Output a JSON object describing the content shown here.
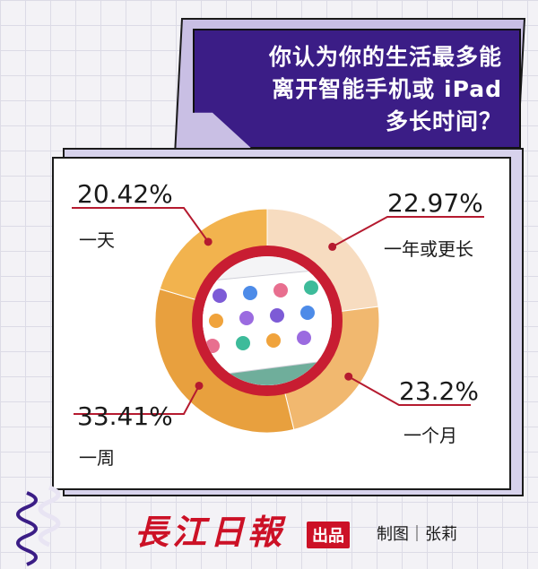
{
  "question": {
    "line1": "你认为你的生活最多能",
    "line2": "离开智能手机或 iPad",
    "line3": "多长时间？"
  },
  "chart_data": {
    "type": "pie",
    "title": "你认为你的生活最多能离开智能手机或 iPad多长时间？",
    "slices": [
      {
        "label": "一年或更长",
        "value": 22.97,
        "value_text": "22.97%",
        "color": "#f7dcc0"
      },
      {
        "label": "一个月",
        "value": 23.2,
        "value_text": "23.2%",
        "color": "#f1b86f"
      },
      {
        "label": "一周",
        "value": 33.41,
        "value_text": "33.41%",
        "color": "#e8a03e"
      },
      {
        "label": "一天",
        "value": 20.42,
        "value_text": "20.42%",
        "color": "#f2b34e"
      }
    ],
    "start_at": "top",
    "direction": "clockwise",
    "leader_line_color": "#b51a2f"
  },
  "footer": {
    "logo": "長江日報",
    "badge": "出品",
    "credit": "制图｜张莉"
  },
  "colors": {
    "accent_purple": "#3b1d86",
    "ring_red": "#c81d32"
  }
}
